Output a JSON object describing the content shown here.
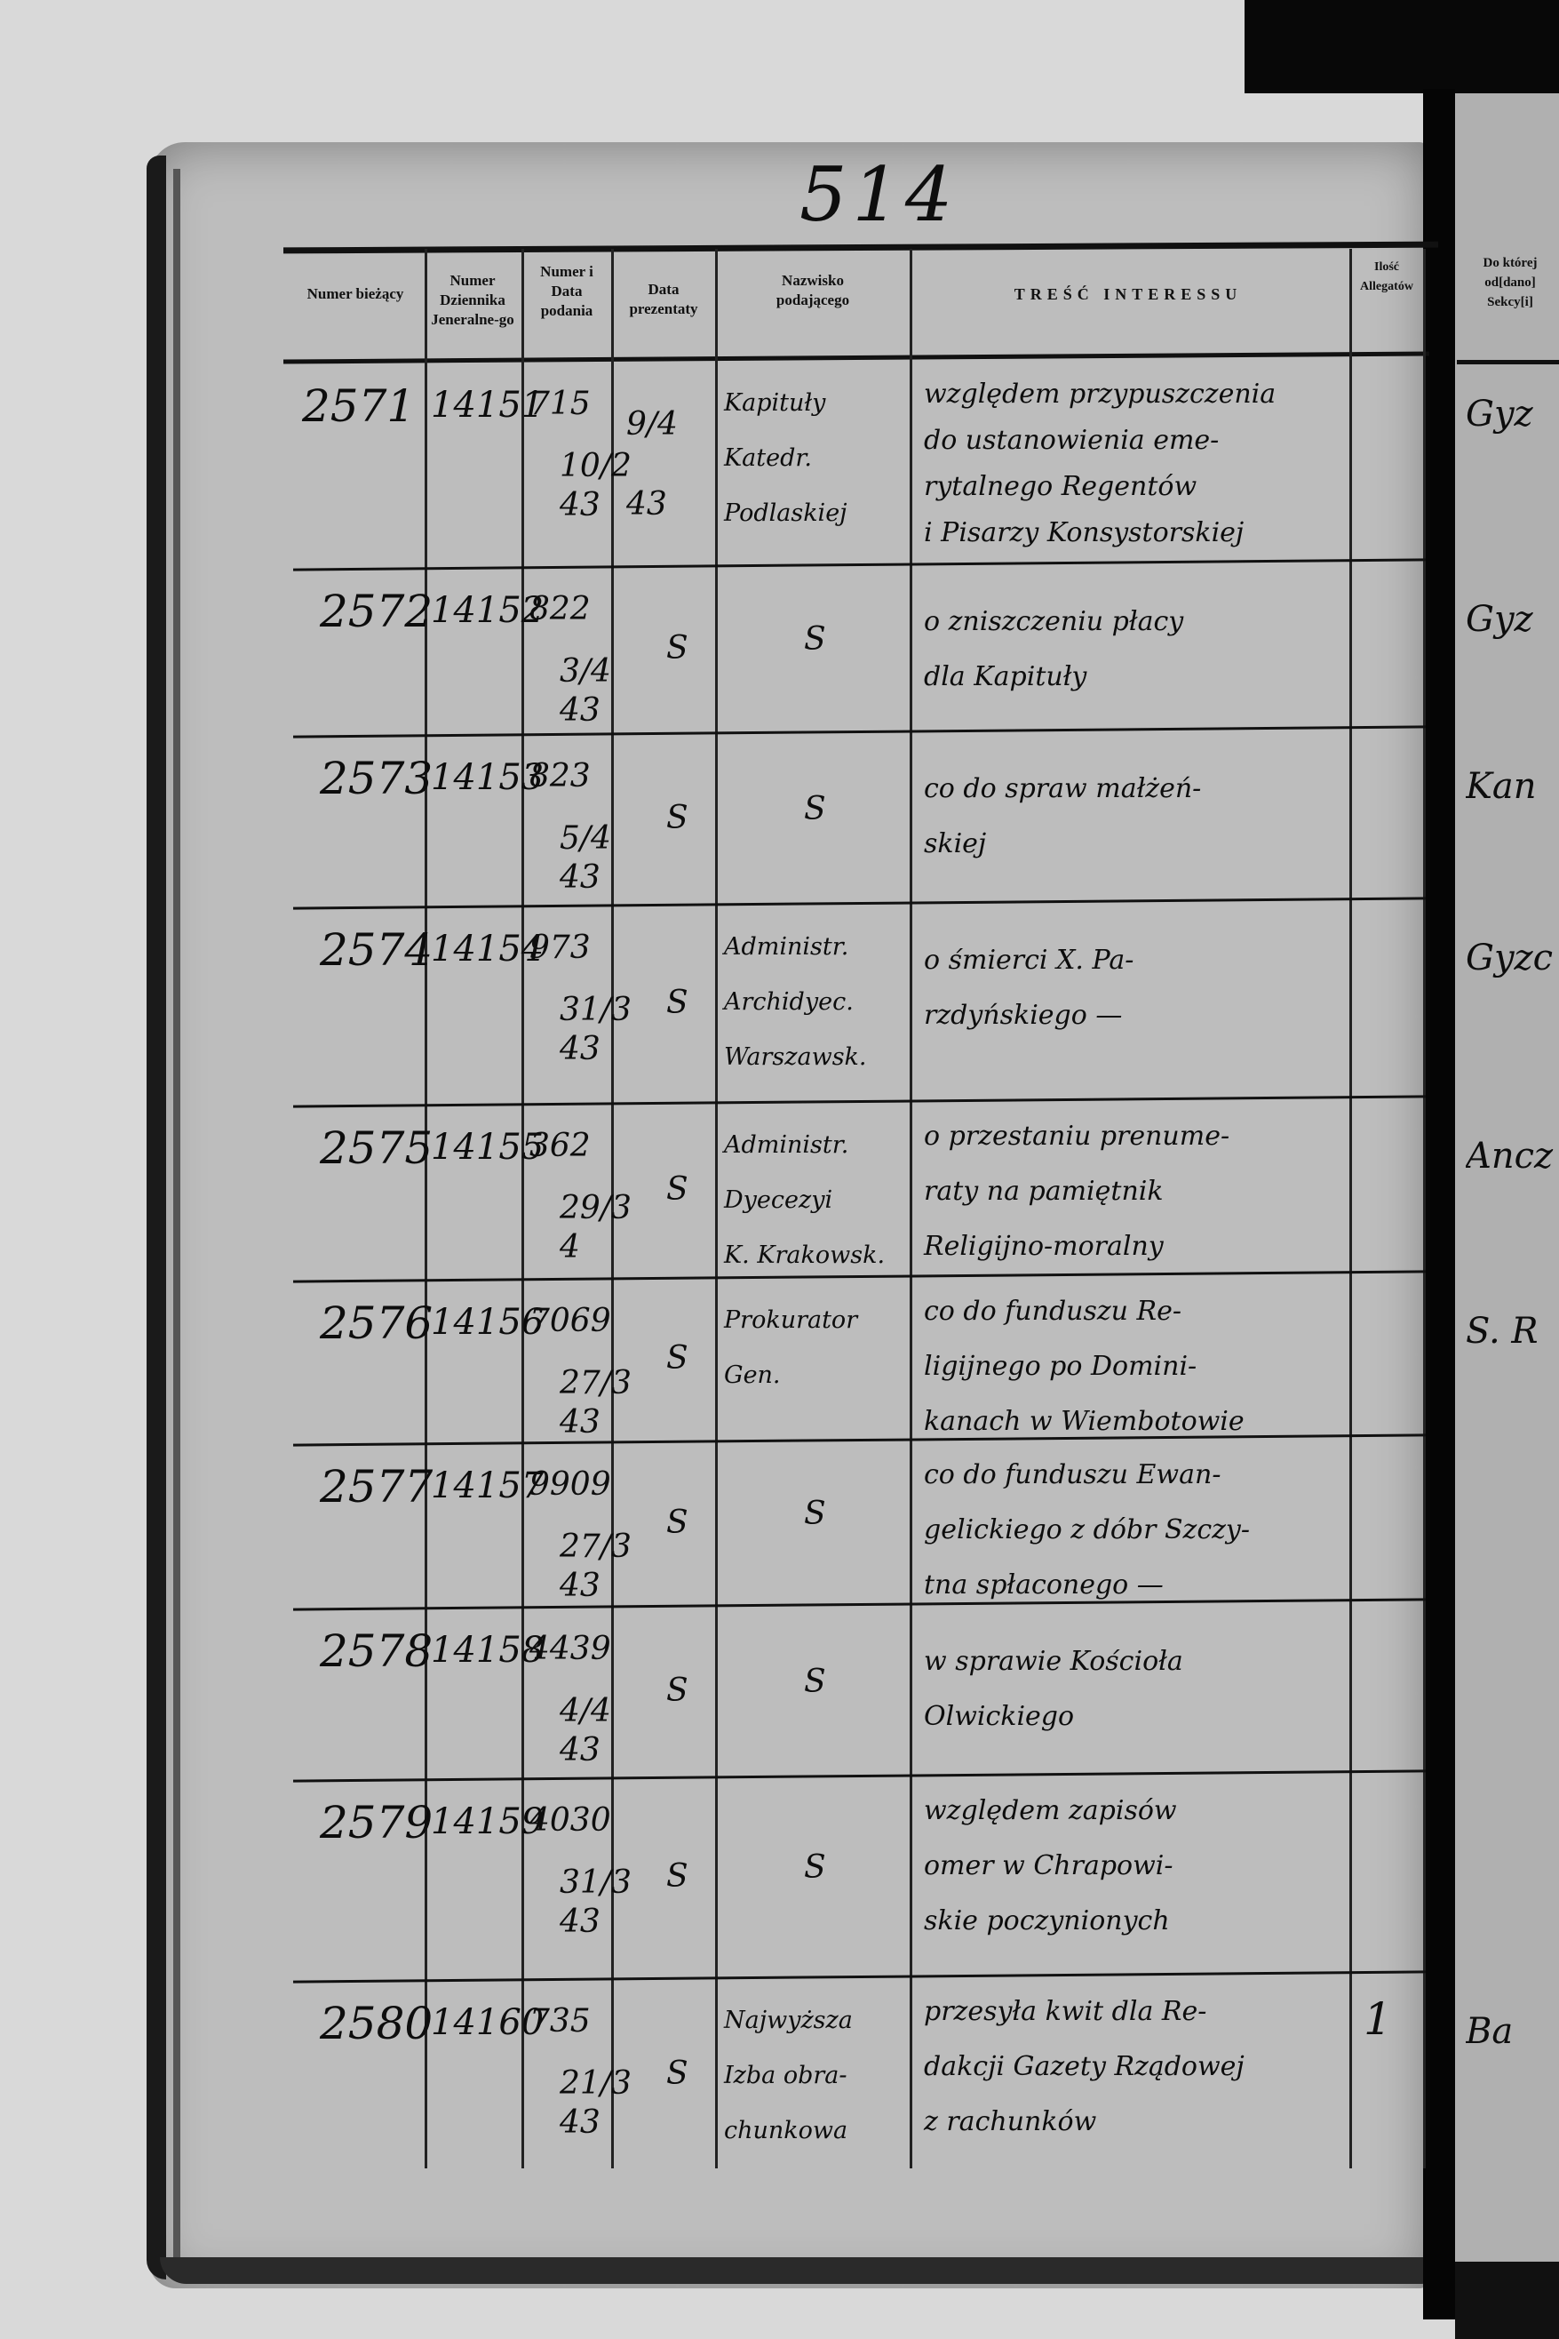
{
  "page_number": "514",
  "headers": {
    "numer_biezacy": "Numer bieżący",
    "numer_dziennika": "Numer Dziennika Jeneralne-go",
    "numer_data_podania": "Numer i Data podania",
    "data_prezentaty": "Data prezentaty",
    "nazwisko_podajacego": "Nazwisko podającego",
    "tresc_interessu": "TREŚĆ INTERESSU",
    "ilosc_allegatow": "Ilość Allegatów",
    "sekcja": "Do której od[dano] Sekcy[i]"
  },
  "rows": [
    {
      "number": "2571",
      "journal": "14151",
      "filing_no": "715",
      "filing_date": "10/2 43",
      "presented": "9/4 43",
      "submitter": [
        "Kapituły",
        "Katedr.",
        "Podlaskiej"
      ],
      "content": [
        "względem przypuszczenia",
        "do ustanowienia eme-",
        "rytalnego Regentów",
        "i Pisarzy Konsystorskiej"
      ],
      "allegaty": "",
      "section": "Gyz"
    },
    {
      "number": "2572",
      "journal": "14152",
      "filing_no": "822",
      "filing_date": "3/4 43",
      "presented": "S",
      "submitter": [
        "S"
      ],
      "content": [
        "o zniszczeniu płacy",
        "dla Kapituły"
      ],
      "allegaty": "",
      "section": "Gyz"
    },
    {
      "number": "2573",
      "journal": "14153",
      "filing_no": "823",
      "filing_date": "5/4 43",
      "presented": "S",
      "submitter": [
        "S"
      ],
      "content": [
        "co do spraw małżeń-",
        "skiej"
      ],
      "allegaty": "",
      "section": "Kan"
    },
    {
      "number": "2574",
      "journal": "14154",
      "filing_no": "973",
      "filing_date": "31/3 43",
      "presented": "S",
      "submitter": [
        "Administr.",
        "Archidyec.",
        "Warszawsk."
      ],
      "content": [
        "o śmierci X. Pa-",
        "rzdyńskiego —"
      ],
      "allegaty": "",
      "section": "Gyzc"
    },
    {
      "number": "2575",
      "journal": "14155",
      "filing_no": "362",
      "filing_date": "29/3 4",
      "presented": "S",
      "submitter": [
        "Administr.",
        "Dyecezyi",
        "K. Krakowsk."
      ],
      "content": [
        "o przestaniu prenume-",
        "raty na pamiętnik",
        "Religijno-moralny"
      ],
      "allegaty": "",
      "section": "Ancz"
    },
    {
      "number": "2576",
      "journal": "14156",
      "filing_no": "7069",
      "filing_date": "27/3 43",
      "presented": "S",
      "submitter": [
        "Prokurator",
        "Gen."
      ],
      "content": [
        "co do funduszu Re-",
        "ligijnego po Domini-",
        "kanach w Wiembotowie"
      ],
      "allegaty": "",
      "section": "S. R"
    },
    {
      "number": "2577",
      "journal": "14157",
      "filing_no": "9909",
      "filing_date": "27/3 43",
      "presented": "S",
      "submitter": [
        "S"
      ],
      "content": [
        "co do funduszu Ewan-",
        "gelickiego z dóbr Szczy-",
        "tna spłaconego —"
      ],
      "allegaty": "",
      "section": ""
    },
    {
      "number": "2578",
      "journal": "14158",
      "filing_no": "4439",
      "filing_date": "4/4 43",
      "presented": "S",
      "submitter": [
        "S"
      ],
      "content": [
        "w sprawie Kościoła",
        "Olwickiego"
      ],
      "allegaty": "",
      "section": ""
    },
    {
      "number": "2579",
      "journal": "14159",
      "filing_no": "4030",
      "filing_date": "31/3 43",
      "presented": "S",
      "submitter": [
        "S"
      ],
      "content": [
        "względem zapisów",
        "omer w Chrapowi-",
        "skie poczynionych"
      ],
      "allegaty": "",
      "section": ""
    },
    {
      "number": "2580",
      "journal": "14160",
      "filing_no": "735",
      "filing_date": "21/3 43",
      "presented": "S",
      "submitter": [
        "Najwyższa",
        "Izba obra-",
        "chunkowa"
      ],
      "content": [
        "przesyła kwit dla Re-",
        "dakcji Gazety Rządowej",
        "z rachunków"
      ],
      "allegaty": "1",
      "section": "Ba"
    }
  ]
}
